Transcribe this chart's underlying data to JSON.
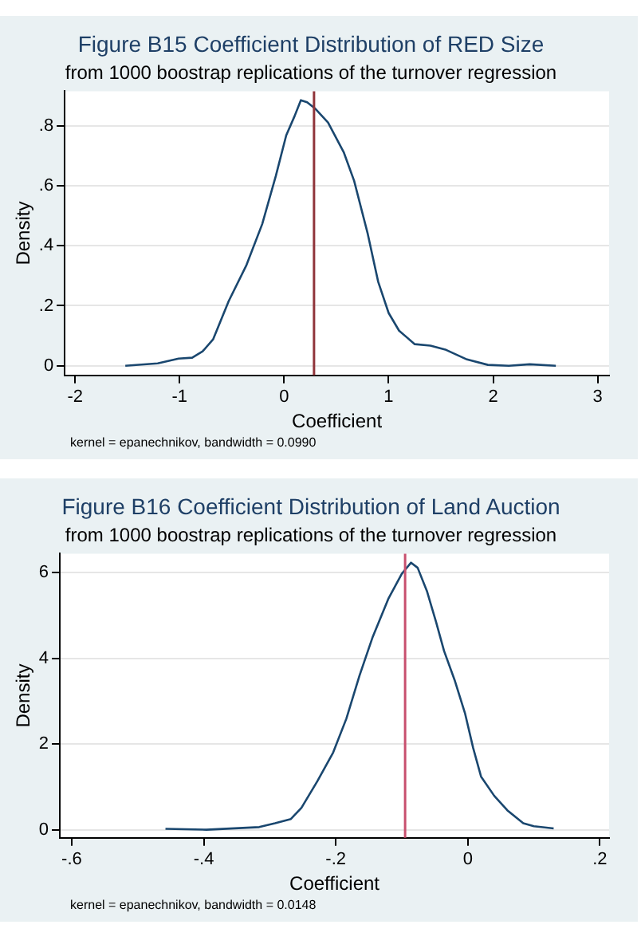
{
  "chart_data": [
    {
      "type": "line",
      "title": "Figure B15 Coefficient Distribution of RED Size",
      "subtitle": "from 1000 boostrap replications of the turnover regression",
      "xlabel": "Coefficient",
      "ylabel": "Density",
      "x": [
        -1.52,
        -1.21,
        -1.01,
        -0.88,
        -0.78,
        -0.68,
        -0.53,
        -0.36,
        -0.21,
        -0.08,
        0.02,
        0.1,
        0.16,
        0.22,
        0.3,
        0.42,
        0.57,
        0.67,
        0.8,
        0.9,
        1.0,
        1.1,
        1.25,
        1.4,
        1.55,
        1.75,
        1.95,
        2.15,
        2.35,
        2.6
      ],
      "series": [
        {
          "color": "#1a476f",
          "values": [
            0,
            0.008,
            0.024,
            0.027,
            0.048,
            0.088,
            0.216,
            0.336,
            0.472,
            0.632,
            0.768,
            0.832,
            0.885,
            0.878,
            0.856,
            0.811,
            0.712,
            0.616,
            0.44,
            0.28,
            0.176,
            0.117,
            0.072,
            0.067,
            0.053,
            0.021,
            0.003,
            0,
            0.005,
            0
          ]
        }
      ],
      "xlim": [
        -2.1,
        3.11
      ],
      "ylim": [
        -0.032,
        0.915
      ],
      "xticks": [
        -2,
        -1,
        0,
        1,
        2,
        3
      ],
      "yticks": [
        0,
        {
          "value": 0.2,
          "label": ".2"
        },
        {
          "value": 0.4,
          "label": ".4"
        },
        {
          "value": 0.6,
          "label": ".6"
        },
        {
          "value": 0.8,
          "label": ".8"
        }
      ],
      "ref_lines": [
        {
          "axis": "x",
          "value": 0.286,
          "color": "#90353b"
        }
      ],
      "grid": "y",
      "legend": false,
      "marker": "none",
      "line_style": "solid",
      "annotations": [
        "kernel = epanechnikov, bandwidth = 0.0990"
      ]
    },
    {
      "type": "line",
      "title": "Figure B16 Coefficient Distribution of Land Auction",
      "subtitle": "from 1000 boostrap replications of the turnover regression",
      "xlabel": "Coefficient",
      "ylabel": "Density",
      "x": [
        -0.458,
        -0.396,
        -0.316,
        -0.292,
        -0.268,
        -0.252,
        -0.228,
        -0.204,
        -0.184,
        -0.164,
        -0.144,
        -0.12,
        -0.1,
        -0.086,
        -0.076,
        -0.062,
        -0.048,
        -0.036,
        -0.02,
        -0.004,
        0.008,
        0.02,
        0.04,
        0.06,
        0.084,
        0.1,
        0.13
      ],
      "series": [
        {
          "color": "#1a476f",
          "values": [
            0.02,
            0,
            0.06,
            0.15,
            0.25,
            0.51,
            1.13,
            1.8,
            2.59,
            3.6,
            4.5,
            5.4,
            5.97,
            6.23,
            6.11,
            5.57,
            4.84,
            4.17,
            3.49,
            2.7,
            1.91,
            1.24,
            0.79,
            0.45,
            0.15,
            0.08,
            0.03
          ]
        }
      ],
      "xlim": [
        -0.618,
        0.214
      ],
      "ylim": [
        -0.19,
        6.44
      ],
      "xticks": [
        {
          "value": -0.6,
          "label": "-.6"
        },
        {
          "value": -0.4,
          "label": "-.4"
        },
        {
          "value": -0.2,
          "label": "-.2"
        },
        0,
        {
          "value": 0.2,
          "label": ".2"
        }
      ],
      "yticks": [
        0,
        2,
        4,
        6
      ],
      "ref_lines": [
        {
          "axis": "x",
          "value": -0.095,
          "color": "#c8506e"
        }
      ],
      "grid": "y",
      "legend": false,
      "marker": "none",
      "line_style": "solid",
      "annotations": [
        "kernel = epanechnikov, bandwidth = 0.0148"
      ]
    }
  ]
}
